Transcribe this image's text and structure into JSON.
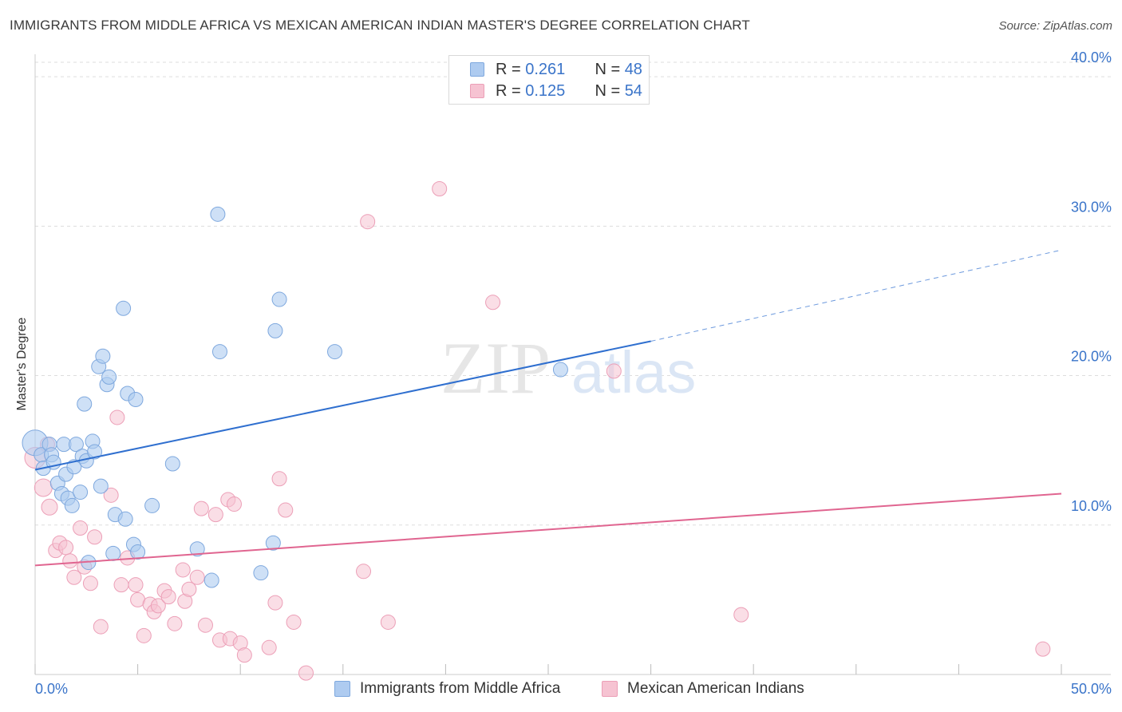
{
  "header": {
    "title": "IMMIGRANTS FROM MIDDLE AFRICA VS MEXICAN AMERICAN INDIAN MASTER'S DEGREE CORRELATION CHART",
    "source": "Source: ZipAtlas.com"
  },
  "watermark": {
    "zip": "ZIP",
    "atlas": "atlas"
  },
  "legend_top": {
    "blue": {
      "r_label": "R = ",
      "r_value": "0.261",
      "n_label": "N = ",
      "n_value": "48"
    },
    "pink": {
      "r_label": "R = ",
      "r_value": "0.125",
      "n_label": "N = ",
      "n_value": "54"
    }
  },
  "colors": {
    "blue_fill": "#aecbf0",
    "blue_stroke": "#7ea8de",
    "blue_line": "#2f6fcf",
    "pink_fill": "#f6c3d2",
    "pink_stroke": "#ec9fb7",
    "pink_line": "#e06590",
    "axis_text": "#3a74c9",
    "grid": "#dddddd"
  },
  "chart_data": {
    "type": "scatter",
    "title": "IMMIGRANTS FROM MIDDLE AFRICA VS MEXICAN AMERICAN INDIAN MASTER'S DEGREE CORRELATION CHART",
    "xlabel": "",
    "ylabel": "Master's Degree",
    "xlim": [
      0,
      50
    ],
    "ylim": [
      0,
      41.5
    ],
    "x_tick_labels": [
      "0.0%",
      "50.0%"
    ],
    "y_ticks": [
      10,
      20,
      30,
      40
    ],
    "y_tick_labels": [
      "10.0%",
      "20.0%",
      "30.0%",
      "40.0%"
    ],
    "grid": true,
    "legend_position": "top-center",
    "series": [
      {
        "name": "Immigrants from Middle Africa",
        "color": "#aecbf0",
        "R": 0.261,
        "N": 48,
        "trend": {
          "x0": 0,
          "y0": 13.7,
          "x1": 30,
          "y1": 22.3,
          "dashed_to_x": 50,
          "dashed_to_y": 28.4
        },
        "points": [
          [
            0.0,
            15.5,
            16
          ],
          [
            0.3,
            14.7,
            9
          ],
          [
            0.4,
            13.8,
            9
          ],
          [
            0.7,
            15.4,
            9
          ],
          [
            0.8,
            14.7,
            9
          ],
          [
            0.9,
            14.2,
            9
          ],
          [
            1.1,
            12.8,
            9
          ],
          [
            1.3,
            12.1,
            9
          ],
          [
            1.4,
            15.4,
            9
          ],
          [
            1.5,
            13.4,
            9
          ],
          [
            1.6,
            11.8,
            9
          ],
          [
            1.8,
            11.3,
            9
          ],
          [
            1.9,
            13.9,
            9
          ],
          [
            2.0,
            15.4,
            9
          ],
          [
            2.2,
            12.2,
            9
          ],
          [
            2.3,
            14.6,
            9
          ],
          [
            2.4,
            18.1,
            9
          ],
          [
            2.5,
            14.3,
            9
          ],
          [
            2.6,
            7.5,
            9
          ],
          [
            2.8,
            15.6,
            9
          ],
          [
            2.9,
            14.9,
            9
          ],
          [
            3.1,
            20.6,
            9
          ],
          [
            3.2,
            12.6,
            9
          ],
          [
            3.3,
            21.3,
            9
          ],
          [
            3.5,
            19.4,
            9
          ],
          [
            3.6,
            19.9,
            9
          ],
          [
            3.8,
            8.1,
            9
          ],
          [
            3.9,
            10.7,
            9
          ],
          [
            4.3,
            24.5,
            9
          ],
          [
            4.4,
            10.4,
            9
          ],
          [
            4.5,
            18.8,
            9
          ],
          [
            4.8,
            8.7,
            9
          ],
          [
            4.9,
            18.4,
            9
          ],
          [
            5.0,
            8.2,
            9
          ],
          [
            5.7,
            11.3,
            9
          ],
          [
            6.7,
            14.1,
            9
          ],
          [
            7.9,
            8.4,
            9
          ],
          [
            8.6,
            6.3,
            9
          ],
          [
            8.9,
            30.8,
            9
          ],
          [
            9.0,
            21.6,
            9
          ],
          [
            11.0,
            6.8,
            9
          ],
          [
            11.6,
            8.8,
            9
          ],
          [
            11.7,
            23.0,
            9
          ],
          [
            11.9,
            25.1,
            9
          ],
          [
            14.6,
            21.6,
            9
          ],
          [
            25.6,
            20.4,
            9
          ]
        ]
      },
      {
        "name": "Mexican American Indians",
        "color": "#f6c3d2",
        "R": 0.125,
        "N": 54,
        "trend": {
          "x0": 0,
          "y0": 7.3,
          "x1": 50,
          "y1": 12.1
        },
        "points": [
          [
            0.0,
            14.5,
            13
          ],
          [
            0.4,
            12.5,
            11
          ],
          [
            0.6,
            15.4,
            9
          ],
          [
            0.7,
            11.2,
            10
          ],
          [
            1.0,
            8.3,
            9
          ],
          [
            1.2,
            8.8,
            9
          ],
          [
            1.5,
            8.5,
            9
          ],
          [
            1.7,
            7.6,
            9
          ],
          [
            1.9,
            6.5,
            9
          ],
          [
            2.2,
            9.8,
            9
          ],
          [
            2.4,
            7.2,
            9
          ],
          [
            2.7,
            6.1,
            9
          ],
          [
            2.9,
            9.2,
            9
          ],
          [
            3.2,
            3.2,
            9
          ],
          [
            3.7,
            12.0,
            9
          ],
          [
            4.0,
            17.2,
            9
          ],
          [
            4.2,
            6.0,
            9
          ],
          [
            4.5,
            7.8,
            9
          ],
          [
            4.9,
            6.0,
            9
          ],
          [
            5.0,
            5.0,
            9
          ],
          [
            5.3,
            2.6,
            9
          ],
          [
            5.6,
            4.7,
            9
          ],
          [
            5.8,
            4.2,
            9
          ],
          [
            6.0,
            4.6,
            9
          ],
          [
            6.3,
            5.6,
            9
          ],
          [
            6.5,
            5.2,
            9
          ],
          [
            6.8,
            3.4,
            9
          ],
          [
            7.2,
            7.0,
            9
          ],
          [
            7.3,
            4.9,
            9
          ],
          [
            7.5,
            5.7,
            9
          ],
          [
            7.9,
            6.5,
            9
          ],
          [
            8.1,
            11.1,
            9
          ],
          [
            8.3,
            3.3,
            9
          ],
          [
            8.8,
            10.7,
            9
          ],
          [
            9.0,
            2.3,
            9
          ],
          [
            9.4,
            11.7,
            9
          ],
          [
            9.5,
            2.4,
            9
          ],
          [
            9.7,
            11.4,
            9
          ],
          [
            10.0,
            2.1,
            9
          ],
          [
            10.2,
            1.3,
            9
          ],
          [
            11.4,
            1.8,
            9
          ],
          [
            11.7,
            4.8,
            9
          ],
          [
            11.9,
            13.1,
            9
          ],
          [
            12.2,
            11.0,
            9
          ],
          [
            12.6,
            3.5,
            9
          ],
          [
            13.2,
            0.1,
            9
          ],
          [
            16.2,
            30.3,
            9
          ],
          [
            16.0,
            6.9,
            9
          ],
          [
            17.2,
            3.5,
            9
          ],
          [
            19.7,
            32.5,
            9
          ],
          [
            22.3,
            24.9,
            9
          ],
          [
            28.2,
            20.3,
            9
          ],
          [
            34.4,
            4.0,
            9
          ],
          [
            49.1,
            1.7,
            9
          ]
        ]
      }
    ]
  }
}
